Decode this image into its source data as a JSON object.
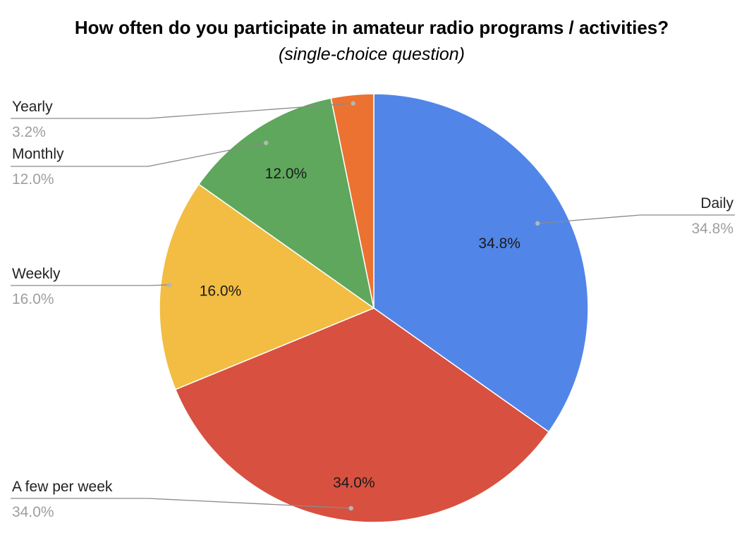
{
  "chart_data": {
    "type": "pie",
    "title": "How often do you participate in amateur radio programs / activities?",
    "subtitle": "(single-choice question)",
    "categories": [
      "Daily",
      "A few per week",
      "Weekly",
      "Monthly",
      "Yearly"
    ],
    "values": [
      34.8,
      34.0,
      16.0,
      12.0,
      3.2
    ],
    "value_labels": [
      "34.8%",
      "34.0%",
      "16.0%",
      "12.0%",
      "3.2%"
    ],
    "inner_labels": [
      "34.8%",
      "34.0%",
      "16.0%",
      "12.0%",
      ""
    ],
    "colors": [
      "#5186e8",
      "#d85040",
      "#f2bd42",
      "#5ea75d",
      "#ec7232"
    ],
    "start_angle": "12 o'clock, clockwise",
    "legend": "none (callout labels)"
  }
}
